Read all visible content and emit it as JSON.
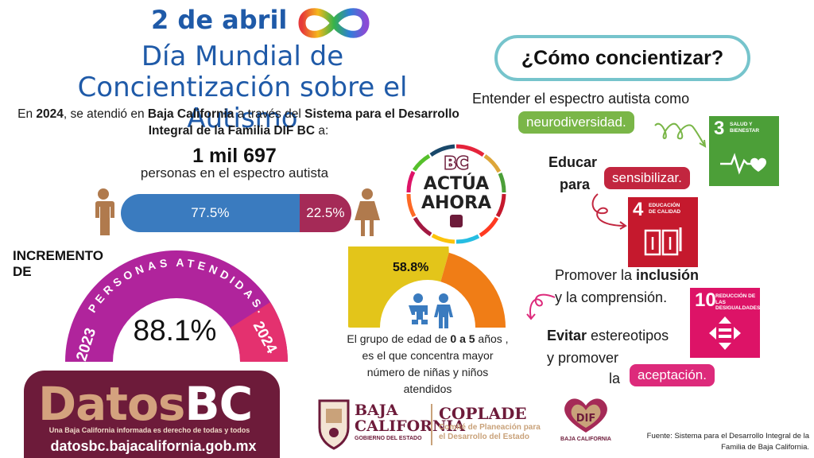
{
  "header": {
    "date": "2 de abril",
    "title": "Día Mundial de Concientización sobre el Autismo"
  },
  "intro": {
    "p1": "En ",
    "year": "2024",
    "p2": ", se atendió en ",
    "state": "Baja California",
    "p3": " a través del ",
    "system": "Sistema para el Desarrollo Integral de la Familia DIF BC",
    "p4": " a:"
  },
  "total": {
    "value": "1 mil 697",
    "label": "personas en el espectro autista"
  },
  "gender": {
    "male_label": "77.5%",
    "male_share": 77.5,
    "female_label": "22.5%",
    "female_share": 22.5
  },
  "increment": {
    "label_line1": "INCREMENTO",
    "label_line2": "DE",
    "arc_label": "PERSONAS ATENDIDAS.",
    "year_start": "2023",
    "year_end": "2024",
    "value": "88.1%"
  },
  "age_group": {
    "value": "58.8%",
    "share": 58.8,
    "caption_p1": "El grupo de edad de ",
    "caption_range": "0 a 5",
    "caption_p2": " años , es el que concentra mayor número de niñas y niños atendidos"
  },
  "bc_logo": {
    "line1": "BC",
    "line2": "ACTÚA",
    "line3": "AHORA"
  },
  "how": {
    "title": "¿Cómo concientizar?",
    "tip1": "Entender el espectro autista como",
    "tip1_pill": "neurodiversidad.",
    "tip2_line1": "Educar",
    "tip2_line2": "para",
    "tip2_pill": "sensibilizar.",
    "tip3_line1_a": "Promover la ",
    "tip3_line1_b": "inclusión",
    "tip3_line2": "y la comprensión.",
    "tip4_line1_a": "Evitar",
    "tip4_line1_b": " estereotipos",
    "tip4_line2": "y promover",
    "tip4_line3": "la",
    "tip4_pill": "aceptación."
  },
  "sdg": {
    "s3_num": "3",
    "s3_text": "SALUD Y BIENESTAR",
    "s4_num": "4",
    "s4_text": "EDUCACIÓN DE CALIDAD",
    "s10_num": "10",
    "s10_text": "REDUCCIÓN DE LAS DESIGUALDADES"
  },
  "datos": {
    "word_a": "Datos",
    "word_b": "BC",
    "slogan": "Una Baja California informada es derecho de todas y todos",
    "url": "datosbc.bajacalifornia.gob.mx"
  },
  "footer": {
    "bc_name_1": "BAJA",
    "bc_name_2": "CALIFORNIA",
    "bc_sub": "GOBIERNO DEL ESTADO",
    "coplade": "COPLADE",
    "coplade_sub_1": "Comité de Planeación para",
    "coplade_sub_2": "el Desarrollo del Estado",
    "dif": "DIF",
    "dif_sub": "BAJA CALIFORNIA",
    "source": "Fuente: Sistema para el Desarrollo Integral de la Familia de Baja California."
  },
  "colors": {
    "primary_blue": "#1f5aa8",
    "male_bar": "#3a7bbf",
    "female_bar": "#a52a57",
    "gauge_purple": "#b0249c",
    "gauge_pink": "#e4316f",
    "age_yellow": "#e3c51a",
    "age_orange": "#f07d16",
    "brand_maroon": "#6d1b3a",
    "brand_gold": "#d4a27e"
  }
}
